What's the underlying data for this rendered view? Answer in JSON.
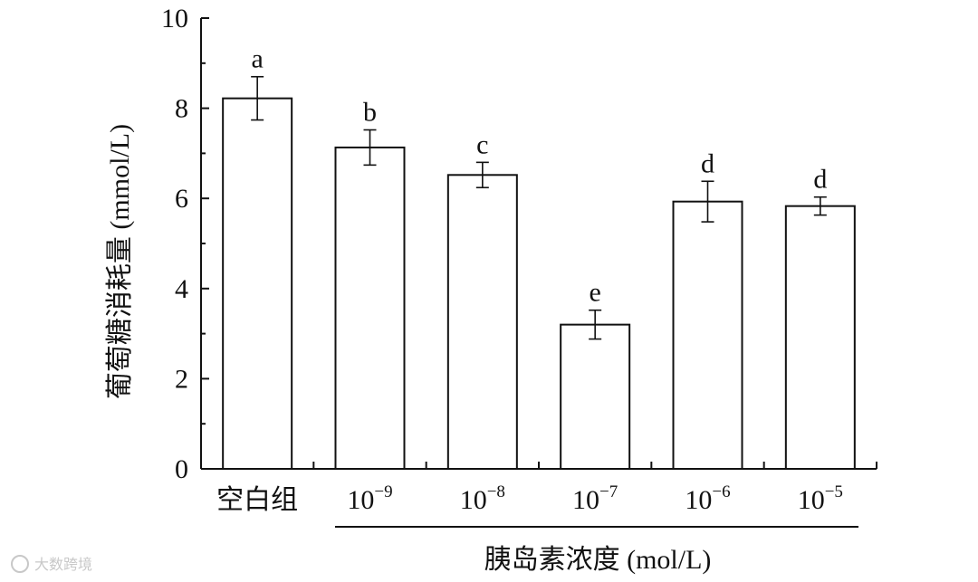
{
  "chart_data": {
    "type": "bar",
    "categories": [
      "空白组",
      "10⁻⁹",
      "10⁻⁸",
      "10⁻⁷",
      "10⁻⁶",
      "10⁻⁵"
    ],
    "category_parts": [
      {
        "base": "空白组",
        "exp": ""
      },
      {
        "base": "10",
        "exp": "−9"
      },
      {
        "base": "10",
        "exp": "−8"
      },
      {
        "base": "10",
        "exp": "−7"
      },
      {
        "base": "10",
        "exp": "−6"
      },
      {
        "base": "10",
        "exp": "−5"
      }
    ],
    "values": [
      8.22,
      7.13,
      6.52,
      3.2,
      5.93,
      5.83
    ],
    "errors": [
      0.48,
      0.39,
      0.28,
      0.32,
      0.45,
      0.2
    ],
    "significance": [
      "a",
      "b",
      "c",
      "e",
      "d",
      "d"
    ],
    "title": "",
    "xlabel": "胰岛素浓度 (mol/L)",
    "ylabel": "葡萄糖消耗量 (mmol/L)",
    "ylim": [
      0,
      10
    ],
    "yticks": [
      0,
      2,
      4,
      6,
      8,
      10
    ],
    "bar_fill": "#ffffff",
    "bar_stroke": "#111111",
    "grid": false,
    "legend": "none"
  },
  "watermark": "大数跨境"
}
